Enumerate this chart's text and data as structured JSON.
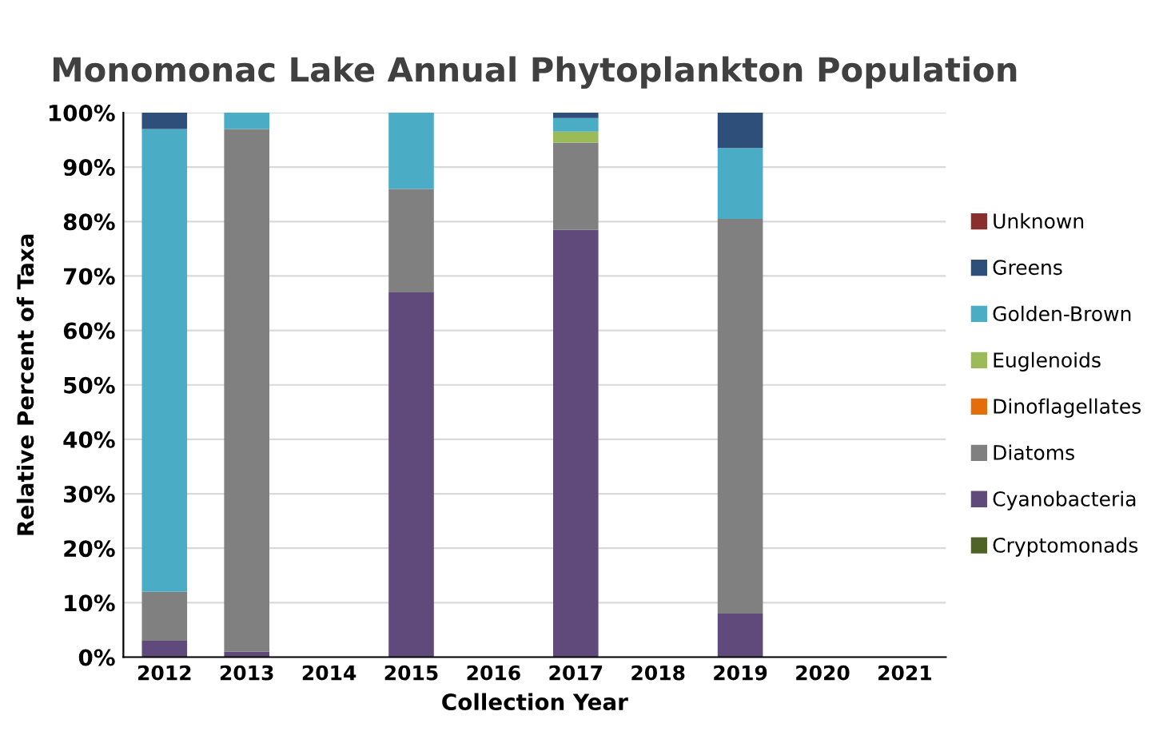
{
  "chart_data": {
    "type": "bar",
    "stacked": true,
    "title": "Monomonac Lake Annual Phytoplankton Population",
    "xlabel": "Collection Year",
    "ylabel": "Relative Percent of Taxa",
    "categories": [
      "2012",
      "2013",
      "2014",
      "2015",
      "2016",
      "2017",
      "2018",
      "2019",
      "2020",
      "2021"
    ],
    "series": [
      {
        "name": "Cryptomonads",
        "color": "#4f6228",
        "values": [
          0,
          0,
          null,
          0,
          null,
          0,
          null,
          0,
          null,
          null
        ]
      },
      {
        "name": "Cyanobacteria",
        "color": "#604a7b",
        "values": [
          3,
          1,
          null,
          67,
          null,
          78.5,
          null,
          8,
          null,
          null
        ]
      },
      {
        "name": "Diatoms",
        "color": "#808080",
        "values": [
          9,
          96,
          null,
          19,
          null,
          16,
          null,
          72.5,
          null,
          null
        ]
      },
      {
        "name": "Dinoflagellates",
        "color": "#e46c0a",
        "values": [
          0,
          0,
          null,
          0,
          null,
          0,
          null,
          0,
          null,
          null
        ]
      },
      {
        "name": "Euglenoids",
        "color": "#9bbb59",
        "values": [
          0,
          0,
          null,
          0,
          null,
          2,
          null,
          0,
          null,
          null
        ]
      },
      {
        "name": "Golden-Brown",
        "color": "#4bacc6",
        "values": [
          85,
          3,
          null,
          14,
          null,
          2.5,
          null,
          13,
          null,
          null
        ]
      },
      {
        "name": "Greens",
        "color": "#2e4f7a",
        "values": [
          3,
          0,
          null,
          0,
          null,
          1,
          null,
          6.5,
          null,
          null
        ]
      },
      {
        "name": "Unknown",
        "color": "#8b2e2e",
        "values": [
          0,
          0,
          null,
          0,
          null,
          0,
          null,
          0,
          null,
          null
        ]
      }
    ],
    "ylim": [
      0,
      100
    ],
    "yticks": [
      {
        "value": 0,
        "label": "0%"
      },
      {
        "value": 10,
        "label": "10%"
      },
      {
        "value": 20,
        "label": "20%"
      },
      {
        "value": 30,
        "label": "30%"
      },
      {
        "value": 40,
        "label": "40%"
      },
      {
        "value": 50,
        "label": "50%"
      },
      {
        "value": 60,
        "label": "60%"
      },
      {
        "value": 70,
        "label": "70%"
      },
      {
        "value": 80,
        "label": "80%"
      },
      {
        "value": 90,
        "label": "90%"
      },
      {
        "value": 100,
        "label": "100%"
      }
    ],
    "grid": "y",
    "legend": "right"
  }
}
